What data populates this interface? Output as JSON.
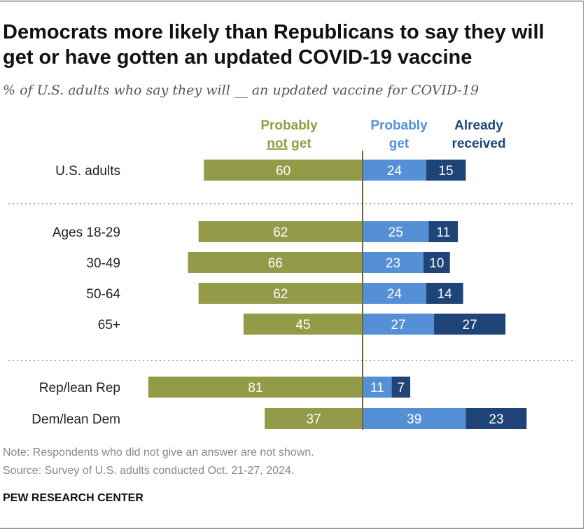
{
  "title": "Democrats more likely than Republicans to say they will get or have gotten an updated COVID-19 vaccine",
  "subtitle": "% of U.S. adults who say they will __ an updated vaccine for COVID-19",
  "note": "Note: Respondents who did not give an answer are not shown.",
  "source": "Source: Survey of U.S. adults conducted Oct. 21-27, 2024.",
  "brand": "PEW RESEARCH CENTER",
  "chart_data": {
    "type": "bar",
    "orientation": "horizontal-diverging",
    "legend": [
      {
        "name": "Probably not get",
        "lines": [
          "Probably",
          "not",
          "get"
        ],
        "color": "#949b48"
      },
      {
        "name": "Probably get",
        "lines": [
          "Probably",
          "get"
        ],
        "color": "#5590d6"
      },
      {
        "name": "Already received",
        "lines": [
          "Already",
          "received"
        ],
        "color": "#1f4478"
      }
    ],
    "categories": [
      "U.S. adults",
      "Ages 18-29",
      "30-49",
      "50-64",
      "65+",
      "Rep/lean Rep",
      "Dem/lean Dem"
    ],
    "groups_separated_after": [
      0,
      4
    ],
    "series": [
      {
        "name": "Probably not get",
        "values": [
          60,
          62,
          66,
          62,
          45,
          81,
          37
        ]
      },
      {
        "name": "Probably get",
        "values": [
          24,
          25,
          23,
          24,
          27,
          11,
          39
        ]
      },
      {
        "name": "Already received",
        "values": [
          15,
          11,
          10,
          14,
          27,
          7,
          23
        ]
      }
    ]
  }
}
